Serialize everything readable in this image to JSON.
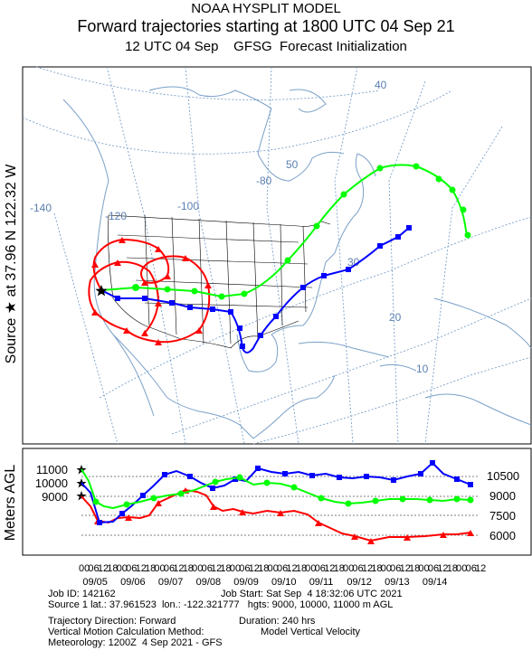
{
  "header": {
    "title1": "NOAA HYSPLIT MODEL",
    "title2": "Forward trajectories starting at 1800 UTC 04 Sep 21",
    "title3": "12 UTC 04 Sep    GFSG  Forecast Initialization"
  },
  "side_label": "Source ★ at   37.96 N  122.32 W",
  "meters_label": "Meters AGL",
  "map": {
    "lat_labels": [
      "40",
      "50",
      "30",
      "20",
      "10"
    ],
    "lon_labels": [
      "-140",
      "-120",
      "-100",
      "-80"
    ]
  },
  "height_panel": {
    "left_ticks": [
      "11000",
      "10000",
      "9000"
    ],
    "right_ticks": [
      "10500",
      "9000",
      "7500",
      "6000"
    ],
    "hour_ticks": [
      "00",
      "06",
      "12",
      "18",
      "00",
      "06",
      "12",
      "18",
      "00",
      "06",
      "12",
      "18",
      "00",
      "06",
      "12",
      "18",
      "00",
      "06",
      "12",
      "18",
      "00",
      "06",
      "12",
      "18",
      "00",
      "06",
      "12",
      "18",
      "00",
      "06",
      "12",
      "18",
      "00",
      "06",
      "12",
      "18",
      "00",
      "06",
      "12",
      "18",
      "00",
      "06",
      "12"
    ],
    "dates": [
      "09/05",
      "09/06",
      "09/07",
      "09/08",
      "09/09",
      "09/10",
      "09/11",
      "09/12",
      "09/13",
      "09/14"
    ]
  },
  "trajectories": [
    {
      "color": "#ff0000",
      "marker": "triangle",
      "start_height_m": 9000
    },
    {
      "color": "#0000ff",
      "marker": "square",
      "start_height_m": 10000
    },
    {
      "color": "#00ff00",
      "marker": "circle",
      "start_height_m": 11000
    }
  ],
  "info": {
    "job_id": "Job ID: 142162",
    "job_start": "Job Start: Sat Sep  4 18:32:06 UTC 2021",
    "source": "Source 1 lat.: 37.961523  lon.: -122.321777   hgts: 9000, 10000, 11000 m AGL",
    "direction": "Trajectory Direction: Forward",
    "duration": "Duration: 240 hrs",
    "vertical": "Vertical Motion Calculation Method:",
    "vertical_value": "Model Vertical Velocity",
    "meteorology": "Meteorology: 1200Z  4 Sep 2021 - GFS"
  }
}
